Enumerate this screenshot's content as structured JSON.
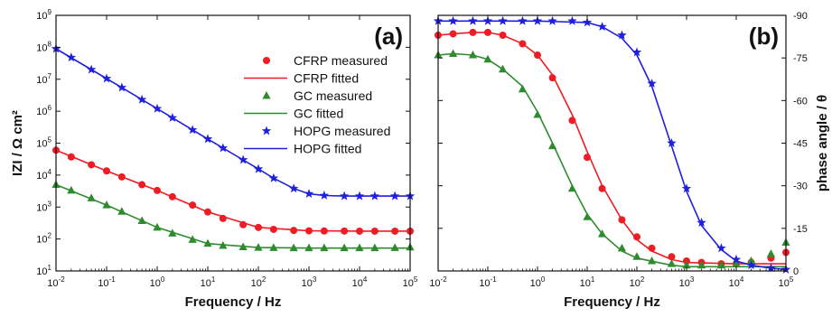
{
  "colors": {
    "CFRP": "#ee1c24",
    "GC": "#2e8b2e",
    "HOPG": "#1f1fe0",
    "axis": "#111111"
  },
  "chart_data": [
    {
      "type": "line",
      "panel_label": "(a)",
      "xlabel": "Frequency / Hz",
      "ylabel": "IZI / Ω cm²",
      "xscale": "log",
      "yscale": "log",
      "xlim": [
        0.01,
        100000
      ],
      "ylim": [
        10,
        1000000000
      ],
      "x_tick_labels": [
        "10-2",
        "10-1",
        "100",
        "101",
        "102",
        "103",
        "104",
        "105"
      ],
      "y_tick_labels": [
        "101",
        "102",
        "103",
        "104",
        "105",
        "106",
        "107",
        "108",
        "109"
      ],
      "legend_position": "right",
      "legend": [
        "CFRP  measured",
        "CFRP  fitted",
        "GC  measured",
        "GC  fitted",
        "HOPG  measured",
        "HOPG  fitted"
      ],
      "series": [
        {
          "name": "CFRP  measured",
          "key": "CFRP",
          "style": "measured",
          "marker": "circle",
          "x": [
            0.01,
            0.02,
            0.05,
            0.1,
            0.2,
            0.5,
            1,
            2,
            5,
            10,
            20,
            50,
            100,
            200,
            500,
            1000,
            2000,
            5000,
            10000,
            20000,
            50000,
            100000
          ],
          "y": [
            60000,
            37000,
            21000,
            13500,
            8800,
            5000,
            3300,
            2100,
            1150,
            700,
            440,
            280,
            230,
            200,
            185,
            180,
            178,
            177,
            176,
            176,
            176,
            176
          ]
        },
        {
          "name": "CFRP  fitted",
          "key": "CFRP",
          "style": "fitted",
          "x": [
            0.01,
            0.1,
            1,
            10,
            100,
            1000,
            10000,
            100000
          ],
          "y": [
            60000,
            13500,
            3300,
            700,
            230,
            180,
            176,
            176
          ]
        },
        {
          "name": "GC  measured",
          "key": "GC",
          "style": "measured",
          "marker": "triangle",
          "x": [
            0.01,
            0.02,
            0.05,
            0.1,
            0.2,
            0.5,
            1,
            2,
            5,
            10,
            20,
            50,
            100,
            200,
            500,
            1000,
            2000,
            5000,
            10000,
            20000,
            50000,
            100000
          ],
          "y": [
            5000,
            3300,
            1900,
            1150,
            720,
            370,
            230,
            150,
            95,
            72,
            62,
            56,
            54,
            53,
            52,
            52,
            52,
            52,
            52,
            52,
            53,
            55
          ]
        },
        {
          "name": "GC  fitted",
          "key": "GC",
          "style": "fitted",
          "x": [
            0.01,
            0.1,
            1,
            10,
            100,
            1000,
            10000,
            100000
          ],
          "y": [
            5000,
            1150,
            230,
            72,
            54,
            52,
            52,
            52
          ]
        },
        {
          "name": "HOPG  measured",
          "key": "HOPG",
          "style": "measured",
          "marker": "star",
          "x": [
            0.01,
            0.02,
            0.05,
            0.1,
            0.2,
            0.5,
            1,
            2,
            5,
            10,
            20,
            50,
            100,
            200,
            500,
            1000,
            2000,
            5000,
            10000,
            20000,
            50000,
            100000
          ],
          "y": [
            90000000,
            48000000,
            20000000,
            10500000,
            5500000,
            2300000,
            1200000,
            620000,
            260000,
            135000,
            70000,
            30000,
            15500,
            8000,
            3800,
            2600,
            2300,
            2200,
            2200,
            2200,
            2200,
            2200
          ]
        },
        {
          "name": "HOPG  fitted",
          "key": "HOPG",
          "style": "fitted",
          "x": [
            0.01,
            0.1,
            1,
            10,
            100,
            200,
            500,
            1000,
            2000,
            5000,
            10000,
            100000
          ],
          "y": [
            90000000,
            10500000,
            1200000,
            135000,
            15500,
            8000,
            3800,
            2600,
            2300,
            2200,
            2200,
            2200
          ]
        }
      ]
    },
    {
      "type": "line",
      "panel_label": "(b)",
      "xlabel": "Frequency / Hz",
      "ylabel": "phase angle / θ",
      "xscale": "log",
      "xlim": [
        0.01,
        100000
      ],
      "ylim": [
        -90,
        0
      ],
      "y_inverted": true,
      "x_tick_labels": [
        "10-2",
        "10-1",
        "100",
        "101",
        "102",
        "103",
        "104",
        "105"
      ],
      "y_tick_labels": [
        "-90",
        "-75",
        "-60",
        "-45",
        "-30",
        "-15",
        "0"
      ],
      "y_ticks": [
        -90,
        -75,
        -60,
        -45,
        -30,
        -15,
        0
      ],
      "series": [
        {
          "name": "CFRP  measured",
          "key": "CFRP",
          "style": "measured",
          "marker": "circle",
          "x": [
            0.01,
            0.02,
            0.05,
            0.1,
            0.2,
            0.5,
            1,
            2,
            5,
            10,
            20,
            50,
            100,
            200,
            500,
            1000,
            2000,
            5000,
            10000,
            20000,
            50000,
            100000
          ],
          "y": [
            -83,
            -83.5,
            -84,
            -84,
            -83,
            -80,
            -76,
            -68,
            -53,
            -40,
            -29,
            -18,
            -12,
            -8,
            -5,
            -3.5,
            -3,
            -2.5,
            -2.5,
            -3,
            -4.5,
            -6.5
          ]
        },
        {
          "name": "CFRP  fitted",
          "key": "CFRP",
          "style": "fitted",
          "x": [
            0.01,
            0.02,
            0.05,
            0.1,
            0.2,
            0.5,
            1,
            2,
            5,
            10,
            20,
            50,
            100,
            200,
            500,
            1000,
            10000,
            100000
          ],
          "y": [
            -83,
            -83.5,
            -84,
            -84,
            -83,
            -80,
            -76,
            -69,
            -55,
            -42,
            -30,
            -18,
            -11,
            -7,
            -4,
            -3,
            -2.5,
            -2.5
          ]
        },
        {
          "name": "GC  measured",
          "key": "GC",
          "style": "measured",
          "marker": "triangle",
          "x": [
            0.01,
            0.02,
            0.05,
            0.1,
            0.2,
            0.5,
            1,
            2,
            5,
            10,
            20,
            50,
            100,
            200,
            500,
            1000,
            2000,
            5000,
            10000,
            20000,
            50000,
            100000
          ],
          "y": [
            -76,
            -76.5,
            -76,
            -74.5,
            -71,
            -64,
            -55,
            -44,
            -29,
            -19,
            -13,
            -8,
            -5,
            -3.5,
            -2.5,
            -2,
            -2,
            -2,
            -2.5,
            -3.5,
            -6,
            -10
          ]
        },
        {
          "name": "GC  fitted",
          "key": "GC",
          "style": "fitted",
          "x": [
            0.01,
            0.02,
            0.05,
            0.1,
            0.2,
            0.5,
            1,
            2,
            5,
            10,
            20,
            50,
            100,
            500,
            1000,
            10000,
            100000
          ],
          "y": [
            -76,
            -76.5,
            -76,
            -74.5,
            -71,
            -65,
            -56,
            -45,
            -30,
            -20,
            -13,
            -7,
            -4.5,
            -2,
            -1.5,
            -1.5,
            -1.5
          ]
        },
        {
          "name": "HOPG  measured",
          "key": "HOPG",
          "style": "measured",
          "marker": "star",
          "x": [
            0.01,
            0.02,
            0.05,
            0.1,
            0.2,
            0.5,
            1,
            2,
            5,
            10,
            20,
            50,
            100,
            200,
            500,
            1000,
            2000,
            5000,
            10000,
            20000,
            50000,
            100000
          ],
          "y": [
            -88,
            -88,
            -88,
            -88,
            -88,
            -88,
            -88,
            -88,
            -88,
            -87.5,
            -86,
            -83,
            -77,
            -66,
            -45,
            -29,
            -17,
            -8,
            -4,
            -2,
            -1,
            -0.5
          ]
        },
        {
          "name": "HOPG  fitted",
          "key": "HOPG",
          "style": "fitted",
          "x": [
            0.01,
            0.1,
            1,
            10,
            20,
            50,
            100,
            200,
            500,
            1000,
            2000,
            5000,
            10000,
            20000,
            50000,
            100000
          ],
          "y": [
            -88,
            -88,
            -88,
            -87.5,
            -86,
            -82,
            -76,
            -65,
            -44,
            -28,
            -16,
            -7.5,
            -3.5,
            -2,
            -1,
            -0.5
          ]
        }
      ]
    }
  ]
}
